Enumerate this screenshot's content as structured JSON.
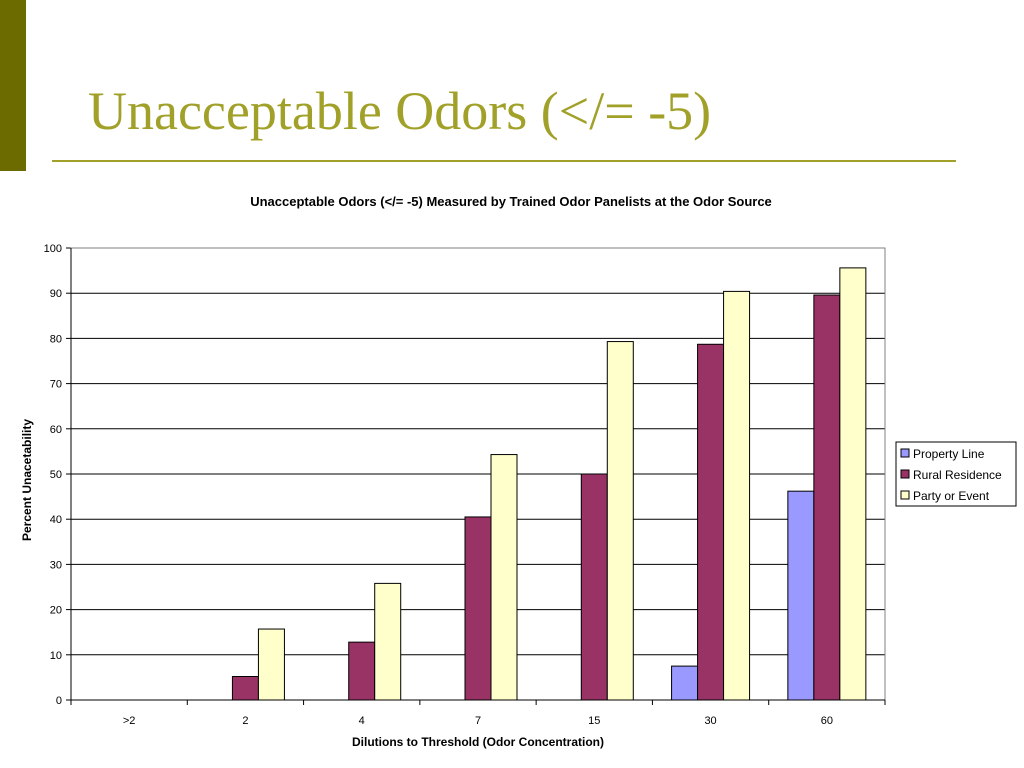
{
  "slide": {
    "title": "Unacceptable Odors (</= -5)",
    "accent_color": "#6b6b00",
    "title_color": "#a1a12a"
  },
  "chart_data": {
    "type": "bar",
    "title": "Unacceptable Odors (</= -5) Measured by Trained Odor Panelists at the Odor Source",
    "xlabel": "Dilutions to Threshold (Odor Concentration)",
    "ylabel": "Percent Unacetability",
    "categories": [
      ">2",
      "2",
      "4",
      "7",
      "15",
      "30",
      "60"
    ],
    "ylim": [
      0,
      100
    ],
    "yticks": [
      0,
      10,
      20,
      30,
      40,
      50,
      60,
      70,
      80,
      90,
      100
    ],
    "grid": true,
    "legend_position": "right",
    "series": [
      {
        "name": "Property Line",
        "color": "#9999ff",
        "values": [
          0,
          0,
          0,
          0,
          0,
          7.5,
          46.2
        ]
      },
      {
        "name": "Rural Residence",
        "color": "#993366",
        "values": [
          0,
          5.2,
          12.8,
          40.5,
          50,
          78.7,
          89.6
        ]
      },
      {
        "name": "Party or Event",
        "color": "#ffffcc",
        "values": [
          0,
          15.7,
          25.8,
          54.3,
          79.3,
          90.4,
          95.6
        ]
      }
    ]
  }
}
